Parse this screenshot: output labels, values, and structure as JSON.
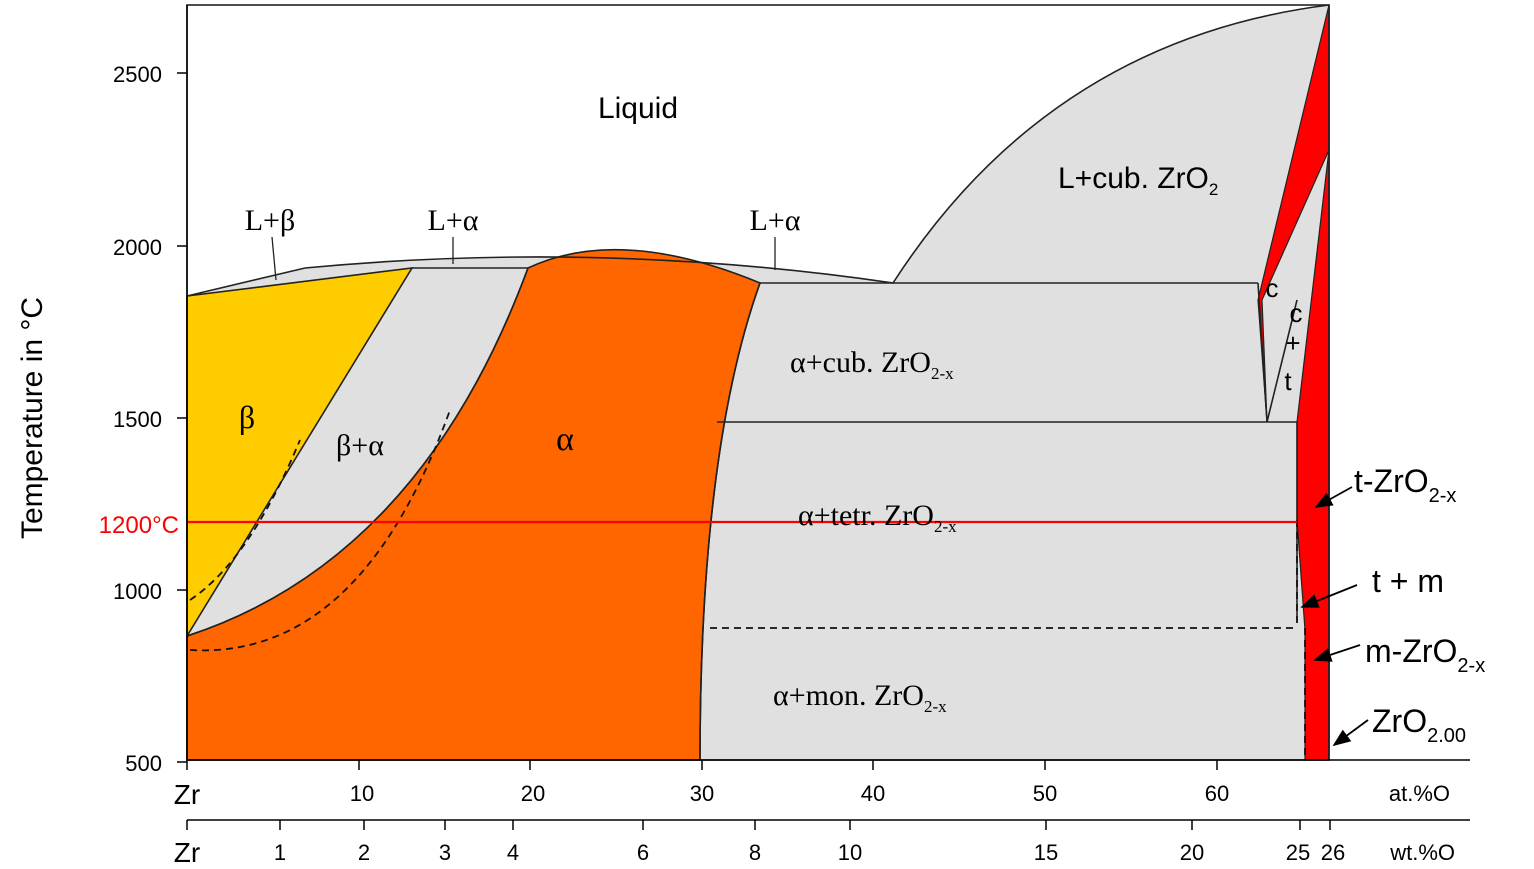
{
  "y_axis": {
    "label": "Temperature in °C",
    "ticks": [
      "2500",
      "2000",
      "1500",
      "1000",
      "500"
    ],
    "marker_label": "1200°C"
  },
  "x_axis_at": {
    "start": "Zr",
    "ticks": [
      "10",
      "20",
      "30",
      "40",
      "50",
      "60"
    ],
    "unit": "at.%O"
  },
  "x_axis_wt": {
    "start": "Zr",
    "ticks": [
      "1",
      "2",
      "3",
      "4",
      "6",
      "8",
      "10",
      "15",
      "20",
      "25",
      "26"
    ],
    "unit": "wt.%O"
  },
  "regions": {
    "liquid": "Liquid",
    "l_beta": "L+β",
    "l_alpha_1": "L+α",
    "l_alpha_2": "L+α",
    "l_cub": "L+cub. ZrO",
    "l_cub_sub": "2",
    "beta": "β",
    "beta_alpha": "β+α",
    "alpha": "α",
    "alpha_cub": "α+cub. ZrO",
    "alpha_cub_sub": "2-x",
    "alpha_tetr": "α+tetr. ZrO",
    "alpha_tetr_sub": "2-x",
    "alpha_mon": "α+mon. ZrO",
    "alpha_mon_sub": "2-x",
    "c": "c",
    "c_plus_t_1": "c",
    "c_plus_t_2": "+",
    "c_plus_t_3": "t"
  },
  "callouts": {
    "t_zro2": "t-ZrO",
    "t_zro2_sub": "2-x",
    "t_m": "t + m",
    "m_zro2": "m-ZrO",
    "m_zro2_sub": "2-x",
    "zro2": "ZrO",
    "zro2_sub": "2.00"
  },
  "colors": {
    "beta": "#ffcc00",
    "alpha": "#ff6600",
    "two_phase": "#e0e0e0",
    "zirconia": "#ff0000",
    "marker_line": "#ff0000"
  }
}
